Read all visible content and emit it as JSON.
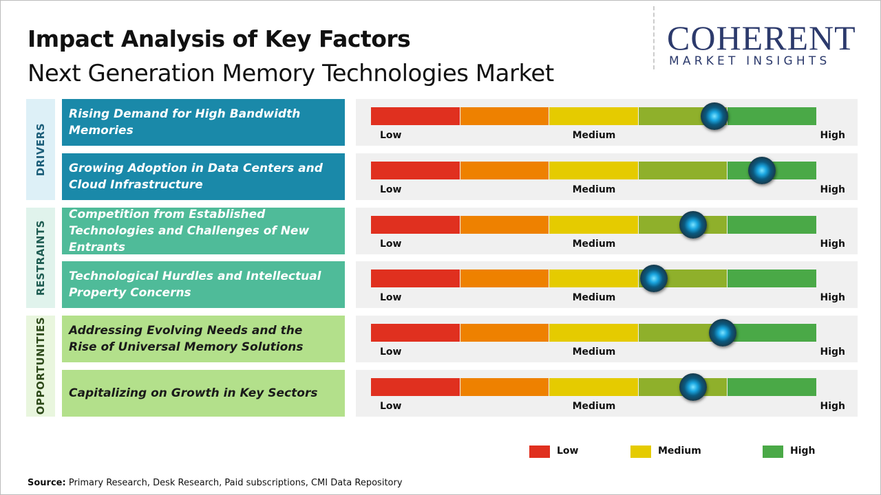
{
  "header": {
    "title": "Impact Analysis of Key Factors",
    "subtitle": "Next Generation Memory Technologies Market"
  },
  "logo": {
    "name": "COHERENT",
    "tagline": "MARKET INSIGHTS"
  },
  "scale": {
    "range": [
      0,
      5
    ],
    "segment_colors": [
      "#e0301f",
      "#ee8100",
      "#e5cb00",
      "#8fb02b",
      "#4aa947"
    ],
    "labels": [
      "Low",
      "Medium",
      "High"
    ]
  },
  "groups": [
    {
      "name": "DRIVERS",
      "color": "#1a89a9",
      "panel_color": "#ddf0f7",
      "text_color": "#1d5f7a",
      "factor_text_color": "#ffffff",
      "factors": [
        {
          "label": "Rising Demand for High Bandwidth Memories",
          "impact": 3.85
        },
        {
          "label": "Growing Adoption in Data Centers and Cloud Infrastructure",
          "impact": 4.38
        }
      ]
    },
    {
      "name": "RESTRAINTS",
      "color": "#4fbb99",
      "panel_color": "#e0f3ec",
      "text_color": "#1f5d52",
      "factor_text_color": "#ffffff",
      "factors": [
        {
          "label": "Competition from Established Technologies and Challenges of New Entrants",
          "impact": 3.61
        },
        {
          "label": "Technological Hurdles and Intellectual Property Concerns",
          "impact": 3.17
        }
      ]
    },
    {
      "name": "OPPORTUNITIES",
      "color": "#b3e08b",
      "panel_color": "#e9f6de",
      "text_color": "#2e4a1a",
      "factor_text_color": "#1a1a1a",
      "factors": [
        {
          "label": "Addressing Evolving Needs and the Rise of Universal Memory Solutions",
          "impact": 3.94
        },
        {
          "label": "Capitalizing on Growth in Key Sectors",
          "impact": 3.61
        }
      ]
    }
  ],
  "legend": [
    {
      "label": "Low",
      "color": "#e0301f"
    },
    {
      "label": "Medium",
      "color": "#e5cb00"
    },
    {
      "label": "High",
      "color": "#4aa947"
    }
  ],
  "source": {
    "label": "Source:",
    "text": "Primary Research, Desk Research, Paid subscriptions, CMI Data Repository"
  }
}
